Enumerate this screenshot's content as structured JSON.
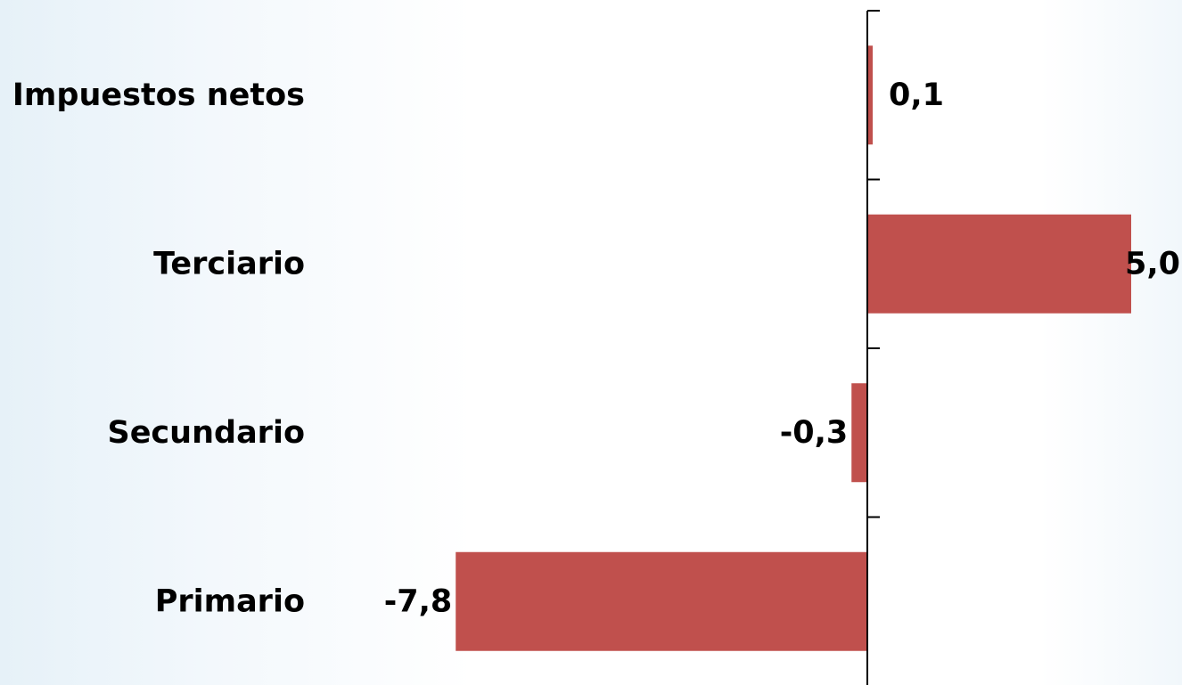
{
  "chart_data": {
    "type": "bar",
    "orientation": "horizontal",
    "categories": [
      "Impuestos netos",
      "Terciario",
      "Secundario",
      "Primario"
    ],
    "values": [
      0.1,
      5.0,
      -0.3,
      -7.8
    ],
    "value_labels": [
      "0,1",
      "5,0",
      "-0,3",
      "-7,8"
    ],
    "bar_color": "#c0504d",
    "grid": false
  }
}
